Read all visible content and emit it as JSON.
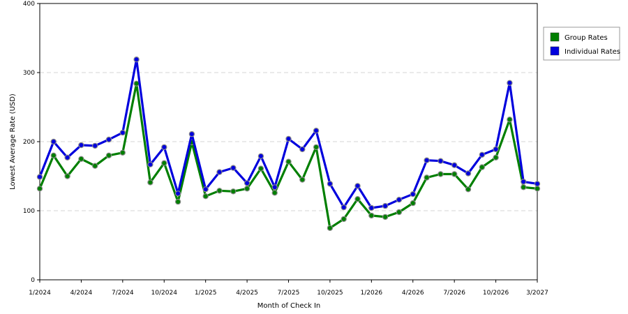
{
  "chart_data": {
    "type": "line",
    "title": "",
    "xlabel": "Month of Check In",
    "ylabel": "Lowest Average Rate (USD)",
    "ylim": [
      0,
      400
    ],
    "yticks": [
      0,
      100,
      200,
      300,
      400
    ],
    "xlim": [
      0,
      36
    ],
    "xticks": [
      {
        "pos": 0,
        "label": "1/2024"
      },
      {
        "pos": 3,
        "label": "4/2024"
      },
      {
        "pos": 6,
        "label": "7/2024"
      },
      {
        "pos": 9,
        "label": "10/2024"
      },
      {
        "pos": 12,
        "label": "1/2025"
      },
      {
        "pos": 15,
        "label": "4/2025"
      },
      {
        "pos": 18,
        "label": "7/2025"
      },
      {
        "pos": 21,
        "label": "10/2025"
      },
      {
        "pos": 24,
        "label": "1/2026"
      },
      {
        "pos": 27,
        "label": "4/2026"
      },
      {
        "pos": 30,
        "label": "7/2026"
      },
      {
        "pos": 33,
        "label": "10/2026"
      },
      {
        "pos": 36,
        "label": "3/2027"
      }
    ],
    "grid": true,
    "legend_position": "right",
    "series": [
      {
        "name": "Group Rates",
        "color": "#007f00",
        "values": [
          132,
          180,
          150,
          175,
          165,
          180,
          184,
          284,
          141,
          169,
          113,
          199,
          121,
          129,
          128,
          132,
          161,
          126,
          171,
          145,
          192,
          75,
          88,
          117,
          93,
          91,
          98,
          111,
          148,
          153,
          153,
          131,
          163,
          177,
          232,
          134,
          132
        ]
      },
      {
        "name": "Individual Rates",
        "color": "#0000dd",
        "values": [
          149,
          200,
          177,
          195,
          194,
          203,
          213,
          319,
          167,
          192,
          125,
          211,
          131,
          156,
          162,
          140,
          179,
          134,
          204,
          189,
          216,
          139,
          105,
          136,
          104,
          107,
          116,
          124,
          173,
          172,
          166,
          154,
          181,
          189,
          285,
          142,
          139
        ]
      }
    ]
  }
}
